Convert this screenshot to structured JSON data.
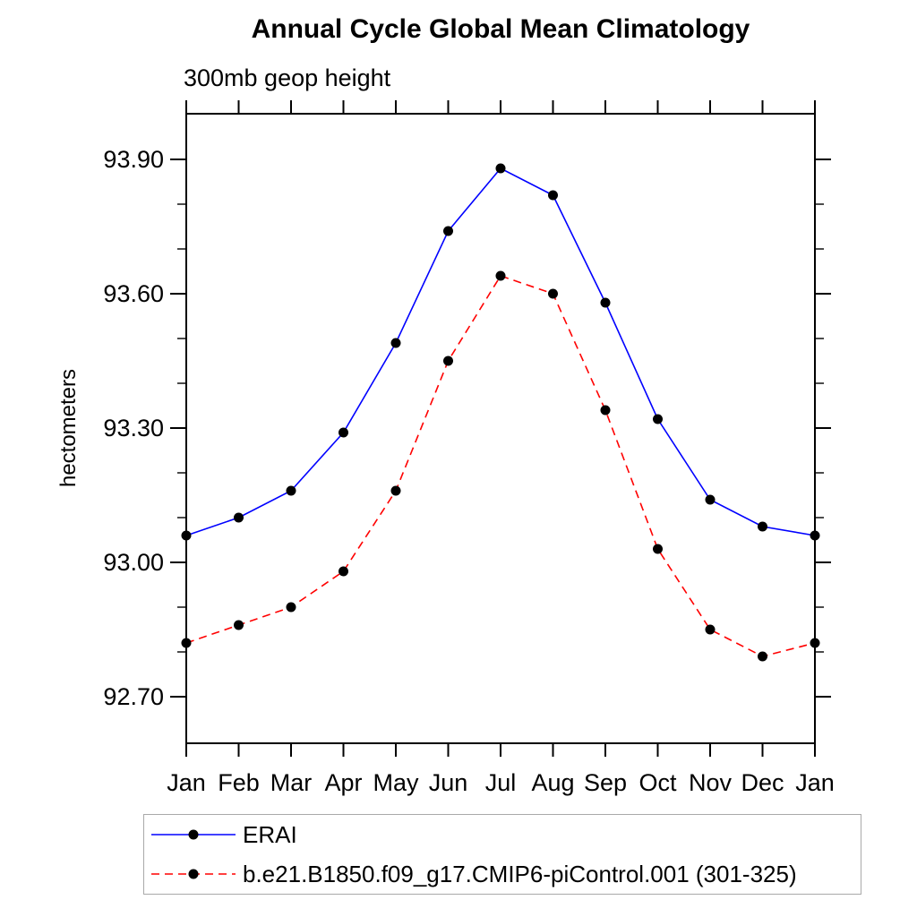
{
  "page": {
    "background": "#ffffff"
  },
  "chart_data": {
    "type": "line",
    "title": "Annual Cycle Global Mean Climatology",
    "subtitle": "300mb geop height",
    "ylabel": "hectometers",
    "xlabel": "",
    "grid": false,
    "legend_position": "bottom-box",
    "categories": [
      "Jan",
      "Feb",
      "Mar",
      "Apr",
      "May",
      "Jun",
      "Jul",
      "Aug",
      "Sep",
      "Oct",
      "Nov",
      "Dec",
      "Jan"
    ],
    "ylim": [
      92.6,
      94.0
    ],
    "y_ticks_major": [
      92.7,
      93.0,
      93.3,
      93.6,
      93.9
    ],
    "y_tick_labels": [
      "92.70",
      "93.00",
      "93.30",
      "93.60",
      "93.90"
    ],
    "y_ticks_minor": [
      92.8,
      92.9,
      93.1,
      93.2,
      93.4,
      93.5,
      93.7,
      93.8
    ],
    "marker_color": "#000000",
    "axis_color": "#000000",
    "legend_border_color": "#a9a9a9",
    "series": [
      {
        "name": "ERAI",
        "color": "#0000ff",
        "style": "solid",
        "marker": "black-dot",
        "values": [
          93.06,
          93.1,
          93.16,
          93.29,
          93.49,
          93.74,
          93.88,
          93.82,
          93.58,
          93.32,
          93.14,
          93.08,
          93.06
        ]
      },
      {
        "name": "b.e21.B1850.f09_g17.CMIP6-piControl.001 (301-325)",
        "color": "#ff0000",
        "style": "dashed",
        "marker": "black-dot",
        "values": [
          92.82,
          92.86,
          92.9,
          92.98,
          93.16,
          93.45,
          93.64,
          93.6,
          93.34,
          93.03,
          92.85,
          92.79,
          92.82
        ]
      }
    ]
  }
}
